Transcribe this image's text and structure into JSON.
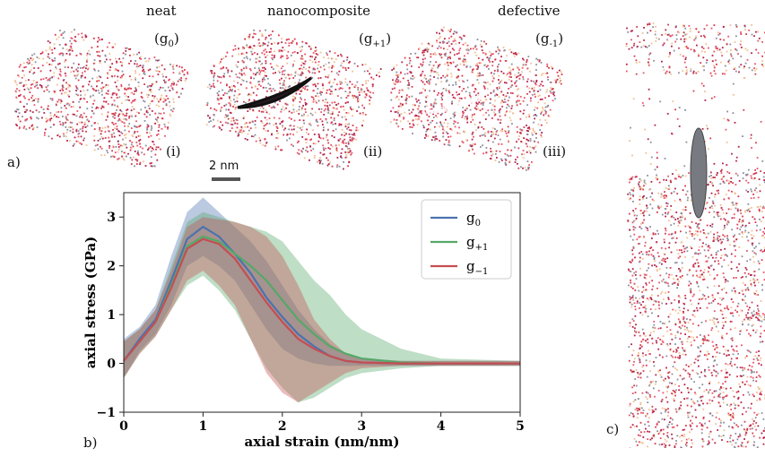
{
  "panel_a": {
    "label": "a)",
    "samples": [
      {
        "name": "neat",
        "symbol": "(g",
        "sub": "0",
        "close": ")",
        "roman": "(i)",
        "crack": "none"
      },
      {
        "name": "nanocomposite",
        "symbol": "(g",
        "sub": "+1",
        "close": ")",
        "roman": "(ii)",
        "crack": "dark"
      },
      {
        "name": "defective",
        "symbol": "(g",
        "sub": "-1",
        "close": ")",
        "roman": "(iii)",
        "crack": "void"
      }
    ],
    "scalebar": "2 nm"
  },
  "panel_b": {
    "label": "b)"
  },
  "panel_c": {
    "label": "c)"
  },
  "colors": {
    "atoms": "#d63a4d",
    "atoms_alt": "#b2224a",
    "inclusion": "#777a80"
  },
  "chart_data": {
    "type": "line",
    "xlabel": "axial strain (nm/nm)",
    "ylabel": "axial stress (GPa)",
    "xlim": [
      0,
      5
    ],
    "ylim": [
      -1,
      3.5
    ],
    "xticks": [
      0,
      1,
      2,
      3,
      4,
      5
    ],
    "yticks": [
      -1,
      0,
      1,
      2,
      3
    ],
    "grid": false,
    "legend_position": "top-right",
    "series": [
      {
        "name": "g0",
        "legend_main": "g",
        "legend_sub": "0",
        "color": "#4c72b0",
        "x": [
          0,
          0.2,
          0.4,
          0.6,
          0.8,
          1.0,
          1.2,
          1.4,
          1.6,
          1.8,
          2.0,
          2.2,
          2.4,
          2.6,
          2.8,
          3.0,
          3.5,
          4.0,
          5.0
        ],
        "y": [
          0.05,
          0.5,
          0.9,
          1.7,
          2.55,
          2.8,
          2.6,
          2.25,
          1.85,
          1.35,
          0.95,
          0.6,
          0.35,
          0.15,
          0.05,
          0.02,
          0.0,
          0.0,
          0.0
        ],
        "band_upper": [
          0.5,
          0.75,
          1.2,
          2.2,
          3.1,
          3.4,
          3.1,
          2.8,
          2.5,
          2.1,
          1.6,
          1.1,
          0.7,
          0.4,
          0.2,
          0.1,
          0.05,
          0.05,
          0.05
        ],
        "band_lower": [
          -0.3,
          0.25,
          0.6,
          1.2,
          2.0,
          2.2,
          2.0,
          1.7,
          1.2,
          0.7,
          0.3,
          0.1,
          0.0,
          -0.05,
          -0.05,
          -0.05,
          -0.05,
          -0.05,
          -0.05
        ]
      },
      {
        "name": "g+1",
        "legend_main": "g",
        "legend_sub": "+1",
        "color": "#55a868",
        "x": [
          0,
          0.2,
          0.4,
          0.6,
          0.8,
          1.0,
          1.2,
          1.4,
          1.6,
          1.8,
          2.0,
          2.2,
          2.4,
          2.6,
          2.8,
          3.0,
          3.5,
          4.0,
          5.0
        ],
        "y": [
          0.05,
          0.45,
          0.85,
          1.6,
          2.4,
          2.6,
          2.5,
          2.25,
          2.0,
          1.7,
          1.3,
          0.9,
          0.6,
          0.35,
          0.2,
          0.1,
          0.02,
          0.0,
          0.0
        ],
        "band_upper": [
          0.45,
          0.7,
          1.1,
          2.0,
          2.9,
          3.1,
          3.0,
          2.9,
          2.8,
          2.7,
          2.5,
          2.1,
          1.7,
          1.4,
          1.0,
          0.7,
          0.3,
          0.1,
          0.05
        ],
        "band_lower": [
          -0.3,
          0.2,
          0.55,
          1.1,
          1.6,
          1.8,
          1.5,
          1.1,
          0.5,
          -0.1,
          -0.5,
          -0.8,
          -0.7,
          -0.5,
          -0.3,
          -0.2,
          -0.1,
          -0.05,
          -0.05
        ]
      },
      {
        "name": "g-1",
        "legend_main": "g",
        "legend_sub": "−1",
        "color": "#c44e52",
        "x": [
          0,
          0.2,
          0.4,
          0.6,
          0.8,
          1.0,
          1.2,
          1.4,
          1.6,
          1.8,
          2.0,
          2.2,
          2.4,
          2.6,
          2.8,
          3.0,
          3.5,
          4.0,
          5.0
        ],
        "y": [
          0.05,
          0.45,
          0.85,
          1.55,
          2.35,
          2.55,
          2.45,
          2.15,
          1.7,
          1.25,
          0.85,
          0.5,
          0.3,
          0.15,
          0.05,
          0.02,
          0.0,
          0.0,
          0.0
        ],
        "band_upper": [
          0.45,
          0.7,
          1.1,
          1.9,
          2.8,
          3.0,
          2.95,
          2.9,
          2.8,
          2.6,
          2.2,
          1.6,
          0.9,
          0.5,
          0.2,
          0.1,
          0.05,
          0.05,
          0.05
        ],
        "band_lower": [
          -0.3,
          0.2,
          0.55,
          1.1,
          1.7,
          1.9,
          1.6,
          1.2,
          0.5,
          -0.2,
          -0.6,
          -0.8,
          -0.6,
          -0.4,
          -0.2,
          -0.1,
          -0.05,
          -0.05,
          -0.05
        ]
      }
    ]
  }
}
